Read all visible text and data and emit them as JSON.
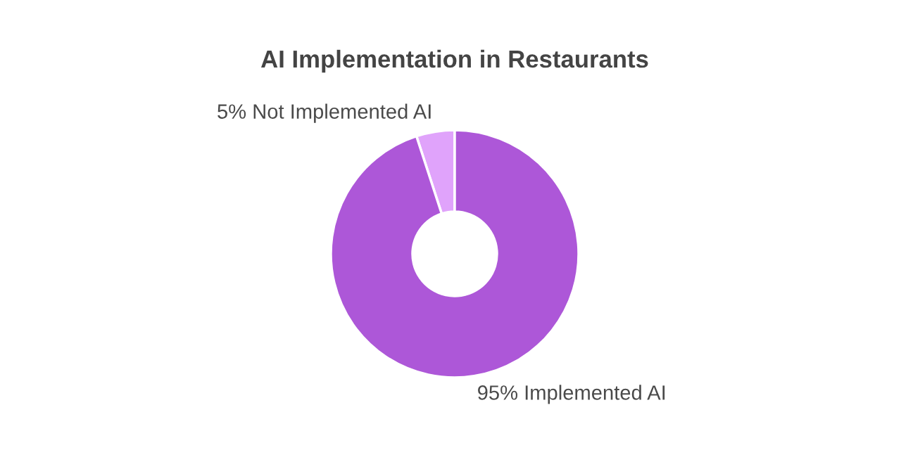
{
  "chart_data": {
    "type": "donut",
    "title": "AI Implementation in Restaurants",
    "categories": [
      "Not Implemented AI",
      "Implemented AI"
    ],
    "values": [
      5,
      95
    ],
    "value_labels": [
      "5%",
      "95%"
    ],
    "colors": [
      "#e0a3fb",
      "#ad57d8"
    ],
    "legend": false
  }
}
